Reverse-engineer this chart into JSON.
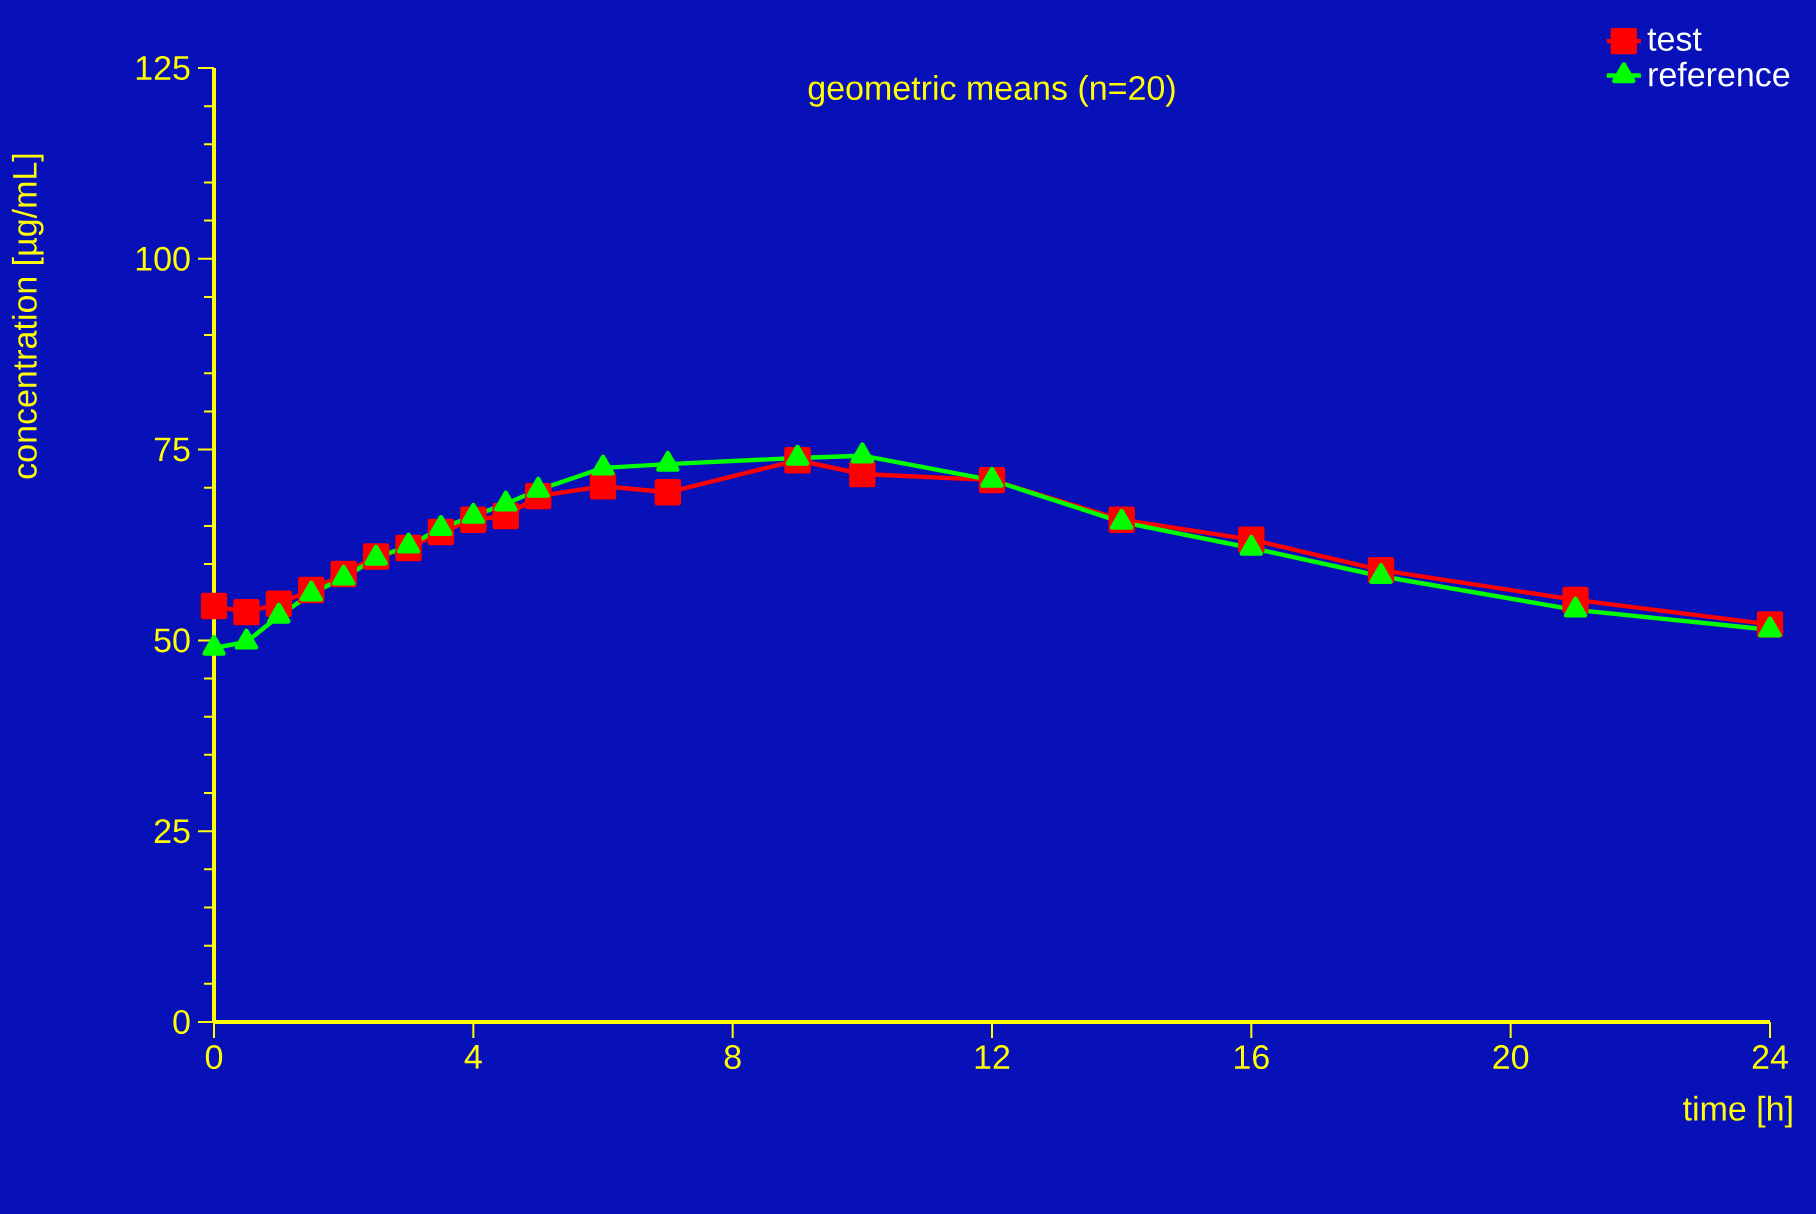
{
  "chart_data": {
    "type": "line",
    "title": "geometric means (n=20)",
    "xlabel": "time [h]",
    "ylabel": "concentration [µg/mL]",
    "x": [
      0,
      0.5,
      1,
      1.5,
      2,
      2.5,
      3,
      3.5,
      4,
      4.5,
      5,
      6,
      7,
      9,
      10,
      12,
      14,
      16,
      18,
      21,
      24
    ],
    "series": [
      {
        "name": "test",
        "color": "#ff0000",
        "marker": "square",
        "values": [
          54.5,
          53.7,
          54.8,
          56.6,
          58.7,
          61.0,
          62.1,
          64.2,
          65.8,
          66.3,
          68.9,
          70.2,
          69.4,
          73.6,
          71.8,
          71.0,
          65.8,
          63.2,
          59.2,
          55.3,
          52.1
        ]
      },
      {
        "name": "reference",
        "color": "#00ff00",
        "marker": "triangle",
        "values": [
          49.0,
          49.8,
          53.2,
          56.1,
          58.2,
          60.8,
          62.4,
          64.7,
          66.3,
          67.9,
          69.7,
          72.6,
          73.1,
          73.9,
          74.2,
          71.0,
          65.5,
          62.1,
          58.4,
          54.0,
          51.4
        ]
      }
    ],
    "xlim": [
      0,
      24
    ],
    "ylim": [
      0,
      125
    ],
    "xticks": [
      0,
      4,
      8,
      12,
      16,
      20,
      24
    ],
    "yticks": [
      0,
      25,
      50,
      75,
      100,
      125
    ],
    "grid": false,
    "legend": "top right",
    "line_style": "solid"
  }
}
